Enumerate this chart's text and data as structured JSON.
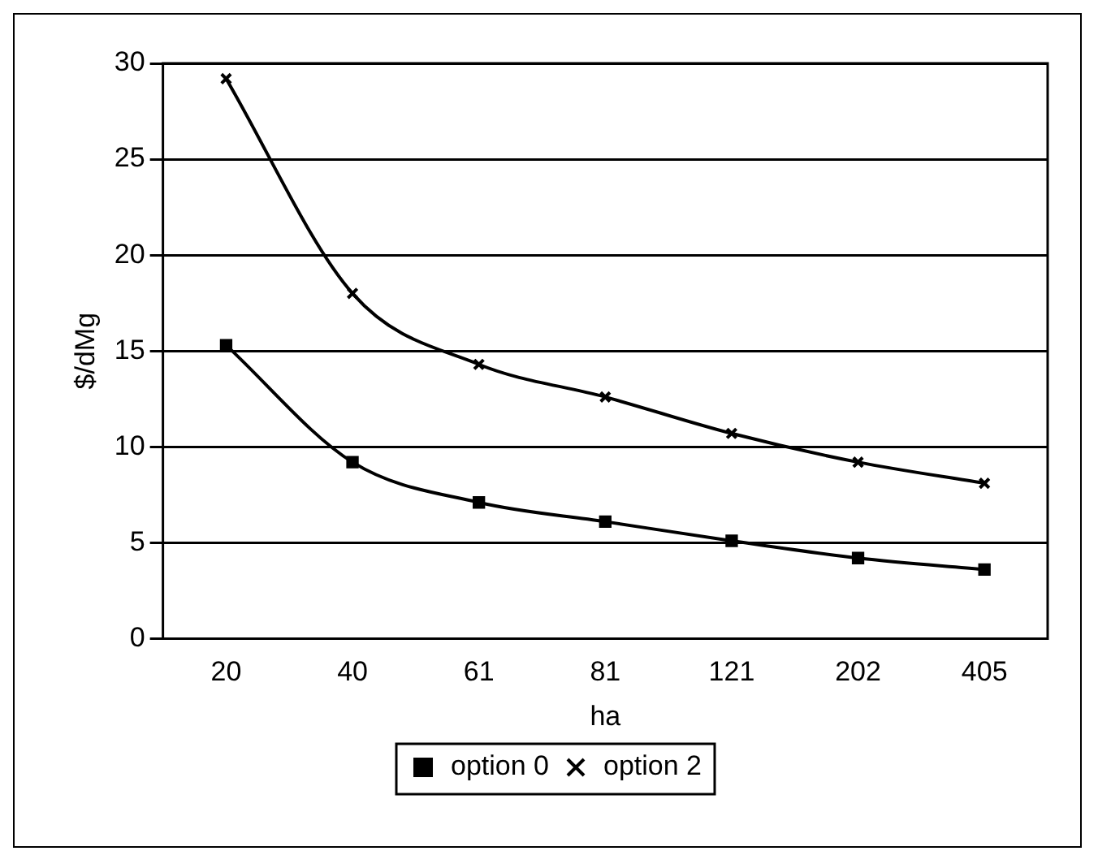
{
  "chart_data": {
    "type": "line",
    "xlabel": "ha",
    "ylabel": "$/dMg",
    "categories": [
      "20",
      "40",
      "61",
      "81",
      "121",
      "202",
      "405"
    ],
    "series": [
      {
        "name": "option 0",
        "color": "#000000",
        "marker": "square",
        "values": [
          15.3,
          9.2,
          7.1,
          6.1,
          5.1,
          4.2,
          3.6
        ]
      },
      {
        "name": "option 2",
        "color": "#000000",
        "marker": "cross",
        "values": [
          29.2,
          18.0,
          14.3,
          12.6,
          10.7,
          9.2,
          8.1
        ]
      }
    ],
    "ylim": [
      0,
      30
    ],
    "yticks": [
      0,
      5,
      10,
      15,
      20,
      25,
      30
    ],
    "grid": "y",
    "legend": "bottom"
  }
}
